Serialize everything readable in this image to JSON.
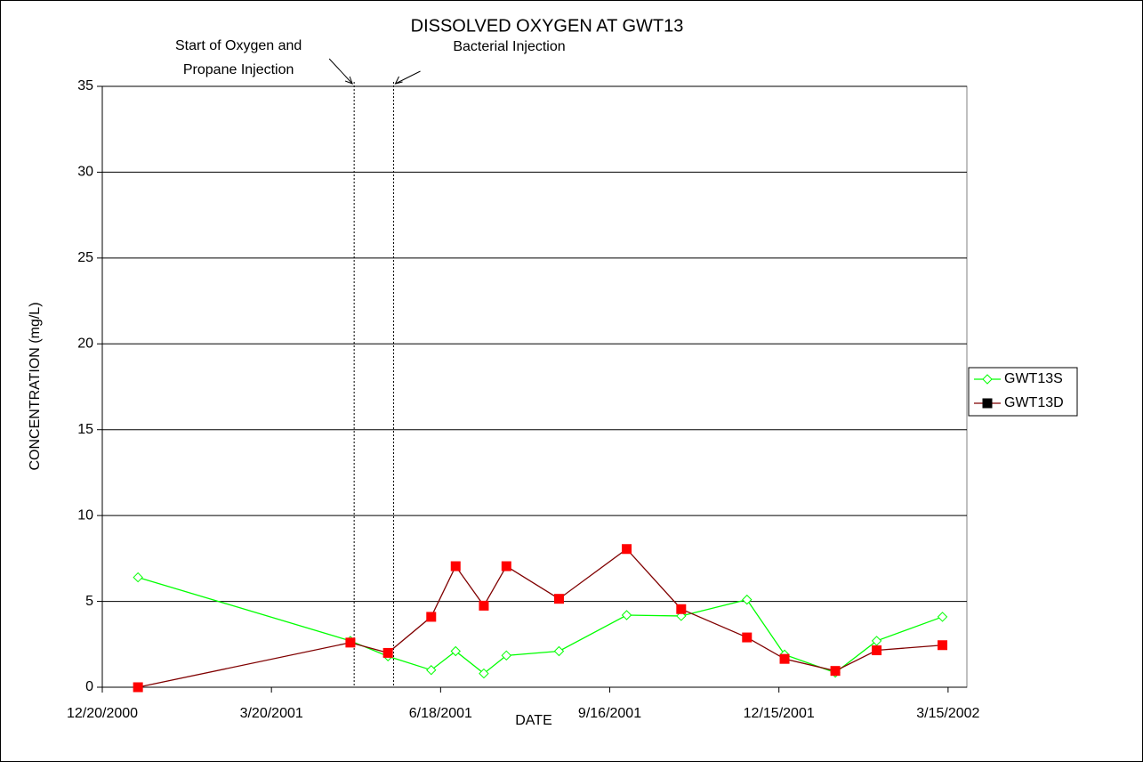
{
  "chart_data": {
    "type": "line",
    "title": "DISSOLVED OXYGEN AT GWT13",
    "xlabel": "DATE",
    "ylabel": "CONCENTRATION (mg/L)",
    "x": [
      "1/8/2001",
      "5/1/2001",
      "5/21/2001",
      "6/13/2001",
      "6/26/2001",
      "7/11/2001",
      "7/23/2001",
      "8/20/2001",
      "9/25/2001",
      "10/24/2001",
      "11/28/2001",
      "12/18/2001",
      "1/14/2002",
      "2/5/2002",
      "3/12/2002"
    ],
    "series": [
      {
        "name": "GWT13S",
        "color": "#00ff00",
        "marker": "diamond",
        "values": [
          6.4,
          2.7,
          1.8,
          1.0,
          2.1,
          0.8,
          1.85,
          2.1,
          4.2,
          4.15,
          5.1,
          1.9,
          0.85,
          2.7,
          4.1
        ]
      },
      {
        "name": "GWT13D",
        "color": "#800000",
        "marker_color": "#ff0000",
        "legend_marker_color": "#000000",
        "marker": "square",
        "values": [
          0,
          2.6,
          2.0,
          4.1,
          7.05,
          4.75,
          7.05,
          5.15,
          8.05,
          4.55,
          2.9,
          1.65,
          0.95,
          2.15,
          2.45
        ]
      }
    ],
    "xlim": [
      "12/20/2000",
      "3/25/2002"
    ],
    "xticks": [
      "12/20/2000",
      "3/20/2001",
      "6/18/2001",
      "9/16/2001",
      "12/15/2001",
      "3/15/2002"
    ],
    "ylim": [
      0,
      35
    ],
    "yticks": [
      0,
      5,
      10,
      15,
      20,
      25,
      30,
      35
    ],
    "grid": true,
    "legend": "right",
    "annotations": [
      {
        "text": [
          "Start of Oxygen and",
          "Propane Injection"
        ],
        "x": "5/3/2001"
      },
      {
        "text": [
          "Bacterial Injection"
        ],
        "x": "5/24/2001"
      }
    ]
  }
}
